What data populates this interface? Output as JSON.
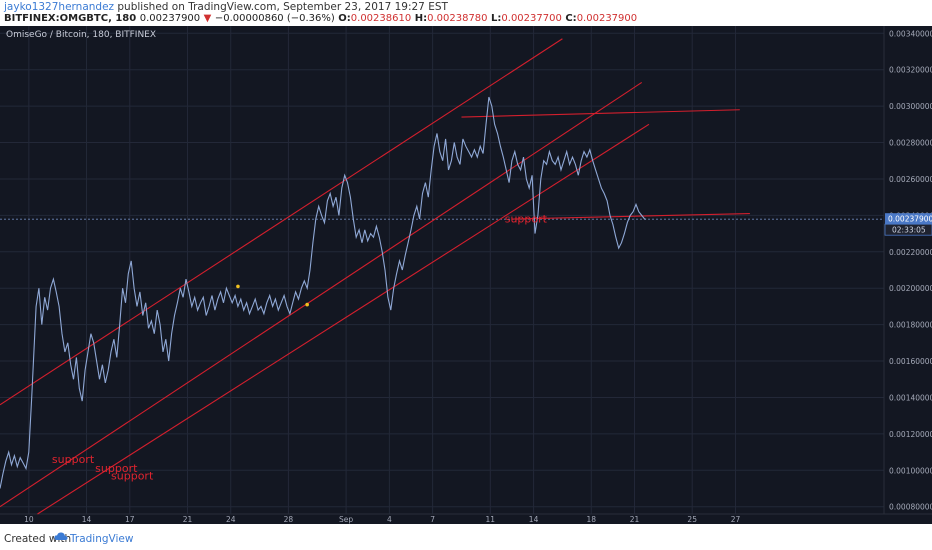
{
  "header": {
    "user": "jayko1327hernandez",
    "published": "published on TradingView.com, September 23, 2017 19:27 EST",
    "symbol": "BITFINEX:OMGBTC, 180",
    "price": "0.00237900",
    "change": "−0.00000860 (−0.36%)",
    "o_label": "O:",
    "o_value": "0.00238610",
    "h_label": "H:",
    "h_value": "0.00238780",
    "l_label": "L:",
    "l_value": "0.00237700",
    "c_label": "C:",
    "c_value": "0.00237900"
  },
  "footer": {
    "created": "Created with",
    "brand": "TradingView"
  },
  "colors": {
    "background": "#131722",
    "grid": "#232838",
    "line": "#8fa8d6",
    "trend": "#d21f2d",
    "label_bg": "#4a78c6",
    "marker": "#f0c020"
  },
  "chart_data": {
    "type": "line",
    "title": "OmiseGo / Bitcoin, 180, BITFINEX",
    "ylim": [
      0.00076,
      0.00344
    ],
    "xlim": [
      0,
      61.3
    ],
    "x_tick_labels": [
      {
        "x": 2,
        "label": "10"
      },
      {
        "x": 6,
        "label": "14"
      },
      {
        "x": 9,
        "label": "17"
      },
      {
        "x": 13,
        "label": "21"
      },
      {
        "x": 16,
        "label": "24"
      },
      {
        "x": 20,
        "label": "28"
      },
      {
        "x": 24,
        "label": "Sep"
      },
      {
        "x": 27,
        "label": "4"
      },
      {
        "x": 30,
        "label": "7"
      },
      {
        "x": 34,
        "label": "11"
      },
      {
        "x": 37,
        "label": "14"
      },
      {
        "x": 41,
        "label": "18"
      },
      {
        "x": 44,
        "label": "21"
      },
      {
        "x": 48,
        "label": "25"
      },
      {
        "x": 51,
        "label": "27"
      }
    ],
    "y_tick_labels": [
      "0.00340000",
      "0.00320000",
      "0.00300000",
      "0.00280000",
      "0.00260000",
      "0.00240000",
      "0.00220000",
      "0.00200000",
      "0.00180000",
      "0.00160000",
      "0.00140000",
      "0.00120000",
      "0.00100000",
      "0.00080000"
    ],
    "y_ticks": [
      0.0034,
      0.0032,
      0.003,
      0.0028,
      0.0026,
      0.0024,
      0.0022,
      0.002,
      0.0018,
      0.0016,
      0.0014,
      0.0012,
      0.001,
      0.0008
    ],
    "last_price_label": "0.00237900",
    "countdown_label": "02:33:05",
    "last_price": 0.002379,
    "series": [
      {
        "points": [
          [
            0.0,
            0.0009
          ],
          [
            0.2,
            0.00098
          ],
          [
            0.4,
            0.00105
          ],
          [
            0.6,
            0.0011
          ],
          [
            0.8,
            0.00103
          ],
          [
            1.0,
            0.00108
          ],
          [
            1.2,
            0.00102
          ],
          [
            1.4,
            0.00107
          ],
          [
            1.6,
            0.00104
          ],
          [
            1.8,
            0.00101
          ],
          [
            2.0,
            0.0011
          ],
          [
            2.2,
            0.0014
          ],
          [
            2.5,
            0.0019
          ],
          [
            2.7,
            0.002
          ],
          [
            2.9,
            0.0018
          ],
          [
            3.1,
            0.00195
          ],
          [
            3.3,
            0.00188
          ],
          [
            3.5,
            0.002
          ],
          [
            3.7,
            0.00205
          ],
          [
            3.9,
            0.00198
          ],
          [
            4.1,
            0.0019
          ],
          [
            4.3,
            0.00175
          ],
          [
            4.5,
            0.00165
          ],
          [
            4.7,
            0.0017
          ],
          [
            4.9,
            0.00158
          ],
          [
            5.1,
            0.0015
          ],
          [
            5.3,
            0.00162
          ],
          [
            5.5,
            0.00145
          ],
          [
            5.7,
            0.00138
          ],
          [
            5.9,
            0.00155
          ],
          [
            6.1,
            0.00165
          ],
          [
            6.3,
            0.00175
          ],
          [
            6.5,
            0.0017
          ],
          [
            6.7,
            0.0016
          ],
          [
            6.9,
            0.0015
          ],
          [
            7.1,
            0.00158
          ],
          [
            7.3,
            0.00148
          ],
          [
            7.5,
            0.00155
          ],
          [
            7.7,
            0.00165
          ],
          [
            7.9,
            0.00172
          ],
          [
            8.1,
            0.00162
          ],
          [
            8.3,
            0.0018
          ],
          [
            8.5,
            0.002
          ],
          [
            8.7,
            0.00192
          ],
          [
            8.9,
            0.00208
          ],
          [
            9.1,
            0.00215
          ],
          [
            9.3,
            0.002
          ],
          [
            9.5,
            0.0019
          ],
          [
            9.7,
            0.00198
          ],
          [
            9.9,
            0.00185
          ],
          [
            10.1,
            0.00192
          ],
          [
            10.3,
            0.00178
          ],
          [
            10.5,
            0.00182
          ],
          [
            10.7,
            0.00175
          ],
          [
            10.9,
            0.00188
          ],
          [
            11.1,
            0.0018
          ],
          [
            11.3,
            0.00165
          ],
          [
            11.5,
            0.00172
          ],
          [
            11.7,
            0.0016
          ],
          [
            11.9,
            0.00175
          ],
          [
            12.1,
            0.00185
          ],
          [
            12.3,
            0.00192
          ],
          [
            12.5,
            0.002
          ],
          [
            12.7,
            0.00195
          ],
          [
            12.9,
            0.00205
          ],
          [
            13.1,
            0.00198
          ],
          [
            13.3,
            0.0019
          ],
          [
            13.5,
            0.00195
          ],
          [
            13.7,
            0.00188
          ],
          [
            13.9,
            0.00192
          ],
          [
            14.1,
            0.00195
          ],
          [
            14.3,
            0.00185
          ],
          [
            14.5,
            0.0019
          ],
          [
            14.7,
            0.00196
          ],
          [
            14.9,
            0.00188
          ],
          [
            15.1,
            0.00194
          ],
          [
            15.3,
            0.00198
          ],
          [
            15.5,
            0.00192
          ],
          [
            15.7,
            0.002
          ],
          [
            15.9,
            0.00196
          ],
          [
            16.1,
            0.00192
          ],
          [
            16.3,
            0.00196
          ],
          [
            16.5,
            0.0019
          ],
          [
            16.7,
            0.00194
          ],
          [
            16.9,
            0.00188
          ],
          [
            17.1,
            0.00192
          ],
          [
            17.3,
            0.00186
          ],
          [
            17.5,
            0.0019
          ],
          [
            17.7,
            0.00194
          ],
          [
            17.9,
            0.00188
          ],
          [
            18.1,
            0.0019
          ],
          [
            18.3,
            0.00186
          ],
          [
            18.5,
            0.00192
          ],
          [
            18.7,
            0.00196
          ],
          [
            18.9,
            0.0019
          ],
          [
            19.1,
            0.00194
          ],
          [
            19.3,
            0.00188
          ],
          [
            19.5,
            0.00192
          ],
          [
            19.7,
            0.00196
          ],
          [
            19.9,
            0.0019
          ],
          [
            20.1,
            0.00186
          ],
          [
            20.3,
            0.00192
          ],
          [
            20.5,
            0.00198
          ],
          [
            20.7,
            0.00194
          ],
          [
            20.9,
            0.002
          ],
          [
            21.1,
            0.00204
          ],
          [
            21.3,
            0.002
          ],
          [
            21.5,
            0.0021
          ],
          [
            21.7,
            0.00225
          ],
          [
            21.9,
            0.00238
          ],
          [
            22.1,
            0.00245
          ],
          [
            22.3,
            0.0024
          ],
          [
            22.5,
            0.00236
          ],
          [
            22.7,
            0.00248
          ],
          [
            22.9,
            0.00252
          ],
          [
            23.1,
            0.00245
          ],
          [
            23.3,
            0.0025
          ],
          [
            23.5,
            0.0024
          ],
          [
            23.7,
            0.00255
          ],
          [
            23.9,
            0.00262
          ],
          [
            24.1,
            0.00258
          ],
          [
            24.3,
            0.0025
          ],
          [
            24.5,
            0.00238
          ],
          [
            24.7,
            0.00228
          ],
          [
            24.9,
            0.00232
          ],
          [
            25.1,
            0.00225
          ],
          [
            25.3,
            0.00232
          ],
          [
            25.5,
            0.00226
          ],
          [
            25.7,
            0.0023
          ],
          [
            25.9,
            0.00228
          ],
          [
            26.1,
            0.00234
          ],
          [
            26.3,
            0.00228
          ],
          [
            26.5,
            0.0022
          ],
          [
            26.7,
            0.0021
          ],
          [
            26.9,
            0.00195
          ],
          [
            27.1,
            0.00188
          ],
          [
            27.3,
            0.002
          ],
          [
            27.5,
            0.00208
          ],
          [
            27.7,
            0.00215
          ],
          [
            27.9,
            0.0021
          ],
          [
            28.1,
            0.00218
          ],
          [
            28.3,
            0.00225
          ],
          [
            28.5,
            0.00232
          ],
          [
            28.7,
            0.0024
          ],
          [
            28.9,
            0.00245
          ],
          [
            29.1,
            0.00238
          ],
          [
            29.3,
            0.00252
          ],
          [
            29.5,
            0.00258
          ],
          [
            29.7,
            0.0025
          ],
          [
            29.9,
            0.00265
          ],
          [
            30.1,
            0.00278
          ],
          [
            30.3,
            0.00285
          ],
          [
            30.5,
            0.00275
          ],
          [
            30.7,
            0.0027
          ],
          [
            30.9,
            0.00282
          ],
          [
            31.1,
            0.00265
          ],
          [
            31.3,
            0.0027
          ],
          [
            31.5,
            0.0028
          ],
          [
            31.7,
            0.00272
          ],
          [
            31.9,
            0.00268
          ],
          [
            32.1,
            0.00282
          ],
          [
            32.3,
            0.00278
          ],
          [
            32.5,
            0.00275
          ],
          [
            32.7,
            0.00272
          ],
          [
            32.9,
            0.00276
          ],
          [
            33.1,
            0.00272
          ],
          [
            33.3,
            0.00278
          ],
          [
            33.5,
            0.00274
          ],
          [
            33.7,
            0.0029
          ],
          [
            33.9,
            0.00305
          ],
          [
            34.1,
            0.003
          ],
          [
            34.3,
            0.0029
          ],
          [
            34.5,
            0.00285
          ],
          [
            34.7,
            0.00278
          ],
          [
            34.9,
            0.00272
          ],
          [
            35.1,
            0.00265
          ],
          [
            35.3,
            0.00258
          ],
          [
            35.5,
            0.0027
          ],
          [
            35.7,
            0.00275
          ],
          [
            35.9,
            0.00268
          ],
          [
            36.1,
            0.00265
          ],
          [
            36.3,
            0.00272
          ],
          [
            36.5,
            0.0026
          ],
          [
            36.7,
            0.00255
          ],
          [
            36.9,
            0.00262
          ],
          [
            37.1,
            0.0023
          ],
          [
            37.3,
            0.0024
          ],
          [
            37.5,
            0.0026
          ],
          [
            37.7,
            0.0027
          ],
          [
            37.9,
            0.00268
          ],
          [
            38.1,
            0.00275
          ],
          [
            38.3,
            0.0027
          ],
          [
            38.5,
            0.00268
          ],
          [
            38.7,
            0.00272
          ],
          [
            38.9,
            0.00265
          ],
          [
            39.1,
            0.0027
          ],
          [
            39.3,
            0.00275
          ],
          [
            39.5,
            0.00268
          ],
          [
            39.7,
            0.00272
          ],
          [
            39.9,
            0.00268
          ],
          [
            40.1,
            0.00262
          ],
          [
            40.3,
            0.0027
          ],
          [
            40.5,
            0.00275
          ],
          [
            40.7,
            0.00272
          ],
          [
            40.9,
            0.00276
          ],
          [
            41.1,
            0.0027
          ],
          [
            41.3,
            0.00265
          ],
          [
            41.5,
            0.0026
          ],
          [
            41.7,
            0.00255
          ],
          [
            41.9,
            0.00252
          ],
          [
            42.1,
            0.00248
          ],
          [
            42.3,
            0.0024
          ],
          [
            42.5,
            0.00235
          ],
          [
            42.7,
            0.00228
          ],
          [
            42.9,
            0.00222
          ],
          [
            43.1,
            0.00225
          ],
          [
            43.3,
            0.0023
          ],
          [
            43.5,
            0.00236
          ],
          [
            43.7,
            0.0024
          ],
          [
            43.9,
            0.00242
          ],
          [
            44.1,
            0.00246
          ],
          [
            44.3,
            0.00242
          ],
          [
            44.5,
            0.0024
          ],
          [
            44.7,
            0.00238
          ],
          [
            44.8,
            0.002379
          ]
        ]
      }
    ],
    "trend_lines": [
      [
        [
          0.0,
          0.00136
        ],
        [
          39.0,
          0.00337
        ]
      ],
      [
        [
          0.0,
          0.0008
        ],
        [
          44.5,
          0.00313
        ]
      ],
      [
        [
          2.6,
          0.00076
        ],
        [
          45.0,
          0.0029
        ]
      ],
      [
        [
          32.0,
          0.00294
        ],
        [
          51.3,
          0.00298
        ]
      ],
      [
        [
          35.5,
          0.00238
        ],
        [
          52.0,
          0.00241
        ]
      ]
    ],
    "markers": [
      [
        16.5,
        0.00201
      ],
      [
        21.3,
        0.00191
      ]
    ],
    "annotations": [
      {
        "text": "support",
        "x": 3.6,
        "y": 0.00104
      },
      {
        "text": "support",
        "x": 6.6,
        "y": 0.00099
      },
      {
        "text": "support",
        "x": 7.7,
        "y": 0.00095
      },
      {
        "text": "support",
        "x": 35.0,
        "y": 0.00236
      }
    ]
  }
}
